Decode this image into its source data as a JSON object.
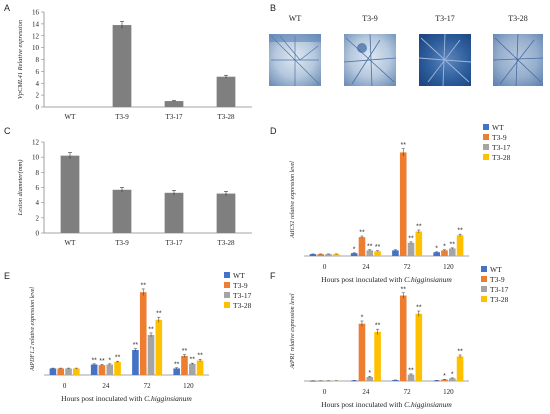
{
  "panel_letters": {
    "A": "A",
    "B": "B",
    "C": "C",
    "D": "D",
    "E": "E",
    "F": "F"
  },
  "photos": {
    "labels": [
      "WT",
      "T3-9",
      "T3-17",
      "T3-28"
    ],
    "tint": "#2f5f9e"
  },
  "colors": {
    "gray_bar": "#7f7f7f",
    "WT": "#4472c4",
    "T3-9": "#ed7d31",
    "T3-17": "#a5a5a5",
    "T3-28": "#ffc000",
    "axis": "#888888",
    "text": "#222222"
  },
  "chart_data": [
    {
      "id": "A",
      "type": "bar",
      "categories": [
        "WT",
        "T3-9",
        "T3-17",
        "T3-28"
      ],
      "values": [
        0.0,
        13.8,
        1.0,
        5.1
      ],
      "errors": [
        0.0,
        0.6,
        0.1,
        0.25
      ],
      "ylabel": "VpCML41 Relative expression",
      "xlabel": "",
      "ylim": [
        0,
        16
      ],
      "yticks": [
        0,
        2,
        4,
        6,
        8,
        10,
        12,
        14,
        16
      ]
    },
    {
      "id": "C",
      "type": "bar",
      "categories": [
        "WT",
        "T3-9",
        "T3-17",
        "T3-28"
      ],
      "values": [
        10.2,
        5.7,
        5.3,
        5.2
      ],
      "errors": [
        0.4,
        0.3,
        0.3,
        0.3
      ],
      "ylabel": "Lesion diameter(mm)",
      "xlabel": "",
      "ylim": [
        0,
        12
      ],
      "yticks": [
        0,
        2,
        4,
        6,
        8,
        10,
        12
      ]
    },
    {
      "id": "D",
      "type": "bar",
      "categories": [
        "0",
        "24",
        "72",
        "120"
      ],
      "series": [
        {
          "name": "WT",
          "values": [
            1.0,
            1.5,
            3.0,
            2.0
          ],
          "errors": [
            0.1,
            0.2,
            0.3,
            0.2
          ],
          "marks": [
            "",
            "*",
            "",
            "*"
          ]
        },
        {
          "name": "T3-9",
          "values": [
            1.0,
            10.0,
            55.0,
            3.0
          ],
          "errors": [
            0.1,
            0.6,
            2.0,
            0.3
          ],
          "marks": [
            "",
            "**",
            "**",
            "*"
          ]
        },
        {
          "name": "T3-17",
          "values": [
            1.0,
            3.0,
            7.0,
            4.0
          ],
          "errors": [
            0.1,
            0.3,
            0.5,
            0.3
          ],
          "marks": [
            "",
            "**",
            "**",
            "**"
          ]
        },
        {
          "name": "T3-28",
          "values": [
            1.0,
            2.5,
            13.0,
            11.0
          ],
          "errors": [
            0.1,
            0.3,
            0.8,
            0.6
          ],
          "marks": [
            "",
            "**",
            "**",
            "**"
          ]
        }
      ],
      "ylabel": "AtICS1 relative expression level",
      "xlabel": "Hours post inoculated with C.higginsianum",
      "ylim": [
        0,
        60
      ]
    },
    {
      "id": "E",
      "type": "bar",
      "categories": [
        "0",
        "24",
        "72",
        "120"
      ],
      "series": [
        {
          "name": "WT",
          "values": [
            1.0,
            1.6,
            3.8,
            1.0
          ],
          "errors": [
            0.05,
            0.1,
            0.2,
            0.1
          ],
          "marks": [
            "",
            "**",
            "**",
            "**"
          ]
        },
        {
          "name": "T3-9",
          "values": [
            1.0,
            1.5,
            12.6,
            2.9
          ],
          "errors": [
            0.05,
            0.1,
            0.5,
            0.2
          ],
          "marks": [
            "",
            "**",
            "**",
            "**"
          ]
        },
        {
          "name": "T3-17",
          "values": [
            1.0,
            1.6,
            6.1,
            1.7
          ],
          "errors": [
            0.05,
            0.1,
            0.3,
            0.1
          ],
          "marks": [
            "",
            "*",
            "**",
            "**"
          ]
        },
        {
          "name": "T3-28",
          "values": [
            1.0,
            2.0,
            8.4,
            2.2
          ],
          "errors": [
            0.05,
            0.1,
            0.4,
            0.2
          ],
          "marks": [
            "",
            "**",
            "**",
            "**"
          ]
        }
      ],
      "ylabel": "AtPDF1.2 relative expression level",
      "xlabel": "Hours post inoculated with C.higginsianum",
      "ylim": [
        0,
        14
      ]
    },
    {
      "id": "F",
      "type": "bar",
      "categories": [
        "0",
        "24",
        "72",
        "120"
      ],
      "series": [
        {
          "name": "WT",
          "values": [
            1,
            3,
            5,
            3
          ],
          "errors": [
            0.5,
            0.5,
            0.5,
            0.5
          ],
          "marks": [
            "",
            "",
            "",
            ""
          ]
        },
        {
          "name": "T3-9",
          "values": [
            1,
            315,
            470,
            8
          ],
          "errors": [
            0.5,
            15,
            15,
            1
          ],
          "marks": [
            "",
            "*",
            "**",
            "*"
          ]
        },
        {
          "name": "T3-17",
          "values": [
            1,
            22,
            35,
            15
          ],
          "errors": [
            0.5,
            3,
            4,
            2
          ],
          "marks": [
            "",
            "*",
            "**",
            "*"
          ]
        },
        {
          "name": "T3-28",
          "values": [
            1,
            270,
            370,
            135
          ],
          "errors": [
            0.5,
            15,
            15,
            8
          ],
          "marks": [
            "",
            "**",
            "**",
            "**"
          ]
        }
      ],
      "ylabel": "AtPR1 relative expression level",
      "xlabel": "Hours post inoculated with C.higginsianum",
      "ylim": [
        0,
        550
      ]
    }
  ]
}
